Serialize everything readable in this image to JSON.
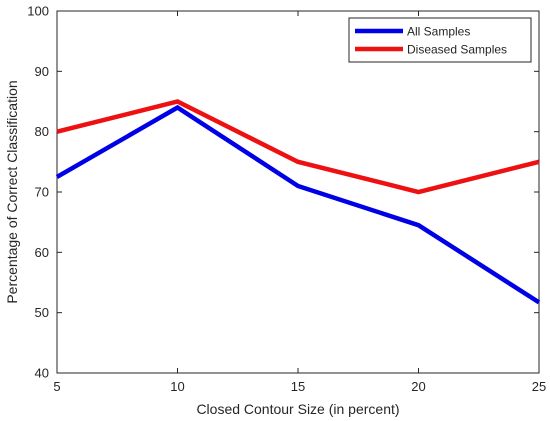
{
  "chart_data": {
    "type": "line",
    "x": [
      5,
      10,
      15,
      20,
      25
    ],
    "xlabel": "Closed Contour Size (in percent)",
    "ylabel": "Percentage of Correct Classification",
    "xlim": [
      5,
      25
    ],
    "ylim": [
      40,
      100
    ],
    "xticks": [
      5,
      10,
      15,
      20,
      25
    ],
    "yticks": [
      40,
      50,
      60,
      70,
      80,
      90,
      100
    ],
    "grid": false,
    "legend_position": "top-right",
    "series": [
      {
        "name": "All Samples",
        "color": "#0000e6",
        "values": [
          72.5,
          84,
          71,
          64.5,
          51.7
        ]
      },
      {
        "name": "Diseased Samples",
        "color": "#ee1111",
        "values": [
          80,
          85,
          75,
          70,
          75
        ]
      }
    ]
  }
}
